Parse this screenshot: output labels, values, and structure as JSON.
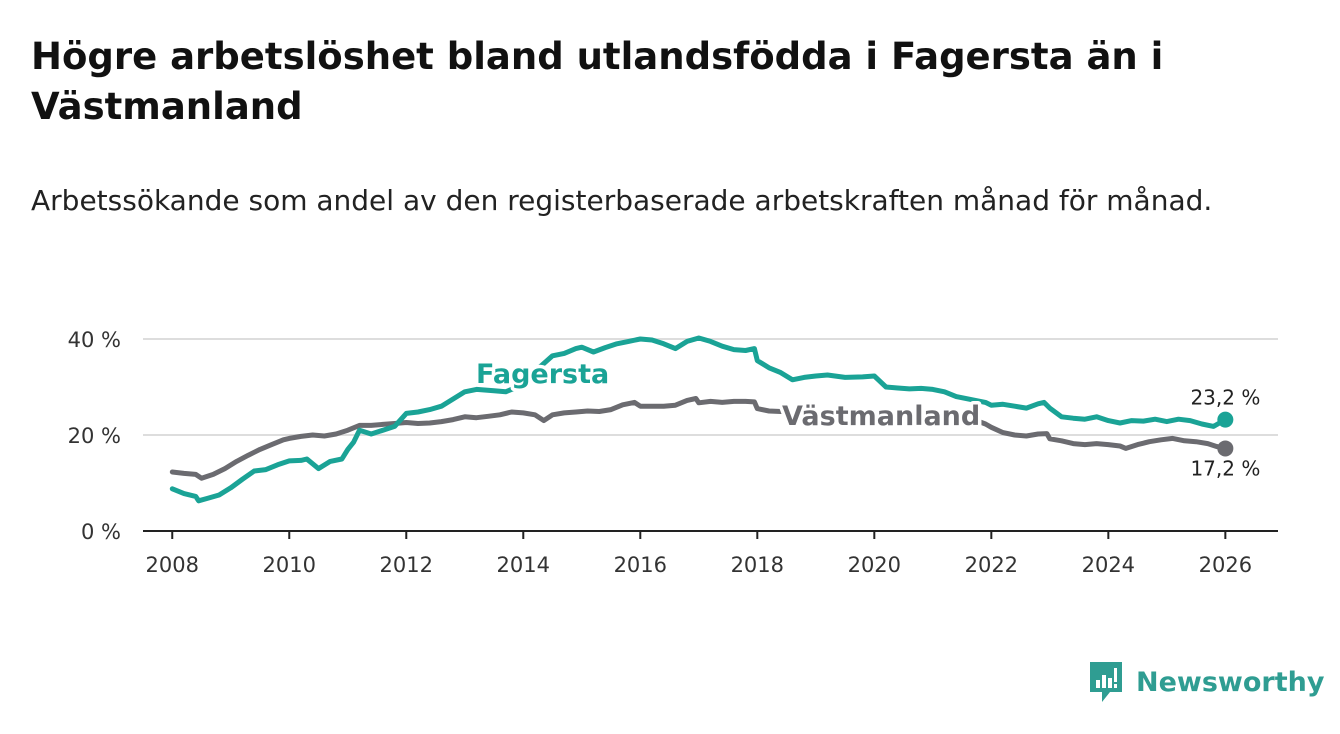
{
  "title": "Högre arbetslöshet bland utlandsfödda i Fagersta än i Västmanland",
  "subtitle": "Arbetssökande som andel av den registerbaserade arbetskraften månad för månad.",
  "brand": "Newsworthy",
  "colors": {
    "fagersta": "#1aa396",
    "vastmanland": "#6b6b70",
    "grid": "#dddddd",
    "axis": "#222222",
    "brand": "#2f9d92"
  },
  "chart_data": {
    "type": "line",
    "title": "Högre arbetslöshet bland utlandsfödda i Fagersta än i Västmanland",
    "xlabel": "",
    "ylabel": "",
    "xlim": [
      2007.5,
      2026.9
    ],
    "ylim": [
      0,
      40
    ],
    "x_ticks": [
      2008,
      2010,
      2012,
      2014,
      2016,
      2018,
      2020,
      2022,
      2024,
      2026
    ],
    "x_tick_labels": [
      "2008",
      "2010",
      "2012",
      "2014",
      "2016",
      "2018",
      "2020",
      "2022",
      "2024",
      "2026"
    ],
    "y_ticks": [
      0,
      20,
      40
    ],
    "y_tick_labels": [
      "0 %",
      "20 %",
      "40 %"
    ],
    "grid": true,
    "series": [
      {
        "name": "Fagersta",
        "label": "Fagersta",
        "end_label": "23,2 %",
        "points": [
          [
            2008.0,
            8.8
          ],
          [
            2008.2,
            7.8
          ],
          [
            2008.4,
            7.2
          ],
          [
            2008.45,
            6.3
          ],
          [
            2008.6,
            6.8
          ],
          [
            2008.8,
            7.5
          ],
          [
            2009.0,
            9.0
          ],
          [
            2009.2,
            10.8
          ],
          [
            2009.4,
            12.5
          ],
          [
            2009.6,
            12.8
          ],
          [
            2009.8,
            13.8
          ],
          [
            2010.0,
            14.6
          ],
          [
            2010.2,
            14.7
          ],
          [
            2010.3,
            15.0
          ],
          [
            2010.4,
            14.0
          ],
          [
            2010.5,
            13.0
          ],
          [
            2010.7,
            14.5
          ],
          [
            2010.9,
            15.0
          ],
          [
            2011.0,
            17.0
          ],
          [
            2011.1,
            18.5
          ],
          [
            2011.2,
            21.0
          ],
          [
            2011.4,
            20.2
          ],
          [
            2011.6,
            21.0
          ],
          [
            2011.8,
            21.8
          ],
          [
            2012.0,
            24.5
          ],
          [
            2012.2,
            24.8
          ],
          [
            2012.4,
            25.3
          ],
          [
            2012.6,
            26.0
          ],
          [
            2012.8,
            27.5
          ],
          [
            2013.0,
            29.0
          ],
          [
            2013.2,
            29.5
          ],
          [
            2013.5,
            29.2
          ],
          [
            2013.7,
            29.0
          ],
          [
            2013.9,
            30.0
          ],
          [
            2014.5,
            36.5
          ],
          [
            2014.7,
            37.0
          ],
          [
            2014.9,
            38.0
          ],
          [
            2015.0,
            38.3
          ],
          [
            2015.2,
            37.3
          ],
          [
            2015.4,
            38.2
          ],
          [
            2015.6,
            39.0
          ],
          [
            2015.8,
            39.5
          ],
          [
            2016.0,
            40.0
          ],
          [
            2016.2,
            39.8
          ],
          [
            2016.4,
            39.0
          ],
          [
            2016.6,
            38.0
          ],
          [
            2016.8,
            39.5
          ],
          [
            2017.0,
            40.2
          ],
          [
            2017.2,
            39.5
          ],
          [
            2017.4,
            38.5
          ],
          [
            2017.6,
            37.8
          ],
          [
            2017.8,
            37.6
          ],
          [
            2017.95,
            38.0
          ],
          [
            2018.0,
            35.5
          ],
          [
            2018.2,
            34.0
          ],
          [
            2018.4,
            33.0
          ],
          [
            2018.6,
            31.5
          ],
          [
            2018.8,
            32.0
          ],
          [
            2019.0,
            32.3
          ],
          [
            2019.2,
            32.5
          ],
          [
            2019.5,
            32.0
          ],
          [
            2019.8,
            32.1
          ],
          [
            2020.0,
            32.3
          ],
          [
            2020.2,
            30.0
          ],
          [
            2020.4,
            29.8
          ],
          [
            2020.6,
            29.6
          ],
          [
            2020.8,
            29.7
          ],
          [
            2021.0,
            29.5
          ],
          [
            2021.2,
            29.0
          ],
          [
            2021.4,
            28.0
          ],
          [
            2021.9,
            26.8
          ],
          [
            2022.0,
            26.2
          ],
          [
            2022.2,
            26.4
          ],
          [
            2022.4,
            26.0
          ],
          [
            2022.6,
            25.6
          ],
          [
            2022.8,
            26.5
          ],
          [
            2022.9,
            26.8
          ],
          [
            2023.0,
            25.6
          ],
          [
            2023.2,
            23.8
          ],
          [
            2023.4,
            23.5
          ],
          [
            2023.6,
            23.3
          ],
          [
            2023.8,
            23.8
          ],
          [
            2024.0,
            23.0
          ],
          [
            2024.2,
            22.5
          ],
          [
            2024.4,
            23.0
          ],
          [
            2024.6,
            22.9
          ],
          [
            2024.8,
            23.3
          ],
          [
            2025.0,
            22.8
          ],
          [
            2025.2,
            23.3
          ],
          [
            2025.4,
            23.0
          ],
          [
            2025.6,
            22.3
          ],
          [
            2025.8,
            21.8
          ],
          [
            2026.0,
            23.2
          ]
        ]
      },
      {
        "name": "Västmanland",
        "label": "Västmanland",
        "end_label": "17,2 %",
        "points": [
          [
            2008.0,
            12.3
          ],
          [
            2008.2,
            12.0
          ],
          [
            2008.4,
            11.8
          ],
          [
            2008.5,
            11.0
          ],
          [
            2008.7,
            11.8
          ],
          [
            2008.9,
            13.0
          ],
          [
            2009.1,
            14.5
          ],
          [
            2009.3,
            15.8
          ],
          [
            2009.5,
            17.0
          ],
          [
            2009.7,
            18.0
          ],
          [
            2009.9,
            19.0
          ],
          [
            2010.0,
            19.3
          ],
          [
            2010.2,
            19.7
          ],
          [
            2010.4,
            20.0
          ],
          [
            2010.6,
            19.8
          ],
          [
            2010.8,
            20.2
          ],
          [
            2011.0,
            21.0
          ],
          [
            2011.2,
            22.0
          ],
          [
            2011.4,
            22.0
          ],
          [
            2011.6,
            22.2
          ],
          [
            2011.8,
            22.4
          ],
          [
            2012.0,
            22.6
          ],
          [
            2012.2,
            22.4
          ],
          [
            2012.4,
            22.5
          ],
          [
            2012.6,
            22.8
          ],
          [
            2012.8,
            23.2
          ],
          [
            2013.0,
            23.8
          ],
          [
            2013.2,
            23.6
          ],
          [
            2013.4,
            23.9
          ],
          [
            2013.6,
            24.2
          ],
          [
            2013.8,
            24.8
          ],
          [
            2014.0,
            24.6
          ],
          [
            2014.2,
            24.2
          ],
          [
            2014.35,
            23.0
          ],
          [
            2014.5,
            24.2
          ],
          [
            2014.7,
            24.6
          ],
          [
            2014.9,
            24.8
          ],
          [
            2015.1,
            25.0
          ],
          [
            2015.3,
            24.9
          ],
          [
            2015.5,
            25.3
          ],
          [
            2015.7,
            26.3
          ],
          [
            2015.9,
            26.8
          ],
          [
            2016.0,
            26.0
          ],
          [
            2016.2,
            26.0
          ],
          [
            2016.4,
            26.0
          ],
          [
            2016.6,
            26.2
          ],
          [
            2016.8,
            27.2
          ],
          [
            2016.95,
            27.6
          ],
          [
            2017.0,
            26.7
          ],
          [
            2017.2,
            27.0
          ],
          [
            2017.4,
            26.8
          ],
          [
            2017.6,
            27.0
          ],
          [
            2017.8,
            27.0
          ],
          [
            2017.95,
            26.9
          ],
          [
            2018.0,
            25.5
          ],
          [
            2018.2,
            25.0
          ],
          [
            2021.7,
            23.2
          ],
          [
            2021.9,
            22.3
          ],
          [
            2022.0,
            21.6
          ],
          [
            2022.2,
            20.5
          ],
          [
            2022.4,
            20.0
          ],
          [
            2022.6,
            19.8
          ],
          [
            2022.8,
            20.2
          ],
          [
            2022.95,
            20.3
          ],
          [
            2023.0,
            19.2
          ],
          [
            2023.2,
            18.8
          ],
          [
            2023.4,
            18.2
          ],
          [
            2023.6,
            18.0
          ],
          [
            2023.8,
            18.2
          ],
          [
            2024.0,
            18.0
          ],
          [
            2024.2,
            17.7
          ],
          [
            2024.3,
            17.2
          ],
          [
            2024.5,
            18.0
          ],
          [
            2024.7,
            18.6
          ],
          [
            2024.9,
            19.0
          ],
          [
            2025.1,
            19.3
          ],
          [
            2025.3,
            18.8
          ],
          [
            2025.5,
            18.6
          ],
          [
            2025.7,
            18.2
          ],
          [
            2025.85,
            17.6
          ],
          [
            2026.0,
            17.2
          ]
        ]
      }
    ]
  }
}
